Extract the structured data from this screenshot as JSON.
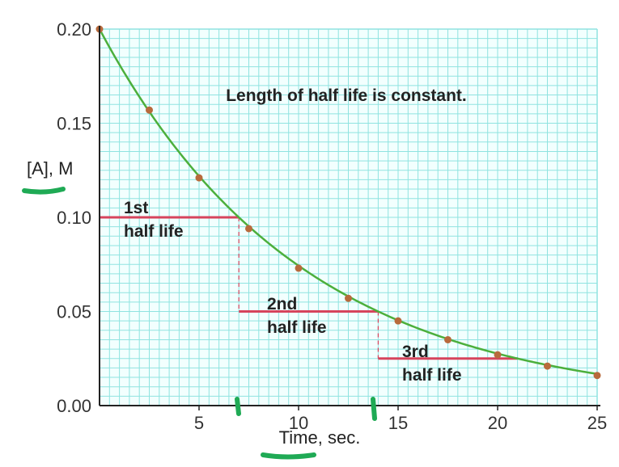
{
  "chart_data": {
    "type": "line",
    "title": "",
    "xlabel": "Time, sec.",
    "ylabel": "[A], M",
    "xlim": [
      0,
      25
    ],
    "ylim": [
      0,
      0.2
    ],
    "x_ticks": [
      "5",
      "10",
      "15",
      "20",
      "25"
    ],
    "y_ticks": [
      "0.00",
      "0.05",
      "0.10",
      "0.15",
      "0.20"
    ],
    "grid": true,
    "x": [
      0,
      2.5,
      5,
      7.5,
      10,
      12.5,
      15,
      17.5,
      20,
      22.5,
      25
    ],
    "y": [
      0.2,
      0.157,
      0.121,
      0.094,
      0.073,
      0.057,
      0.045,
      0.035,
      0.027,
      0.021,
      0.016
    ],
    "half_life": 7,
    "half_lives": [
      {
        "line1": "1st",
        "line2": "half life",
        "start": 0,
        "end": 7,
        "level": 0.1
      },
      {
        "line1": "2nd",
        "line2": "half life",
        "start": 7,
        "end": 14,
        "level": 0.05
      },
      {
        "line1": "3rd",
        "line2": "half life",
        "start": 14,
        "end": 21,
        "level": 0.025
      }
    ],
    "annotation": "Length of half life is constant.",
    "colors": {
      "curve": "#4caf3c",
      "points": "#b86a3c",
      "half_life_lines": "#d6445c",
      "grid": "#8fe3e0",
      "highlight_marks": "#1faa55"
    }
  }
}
